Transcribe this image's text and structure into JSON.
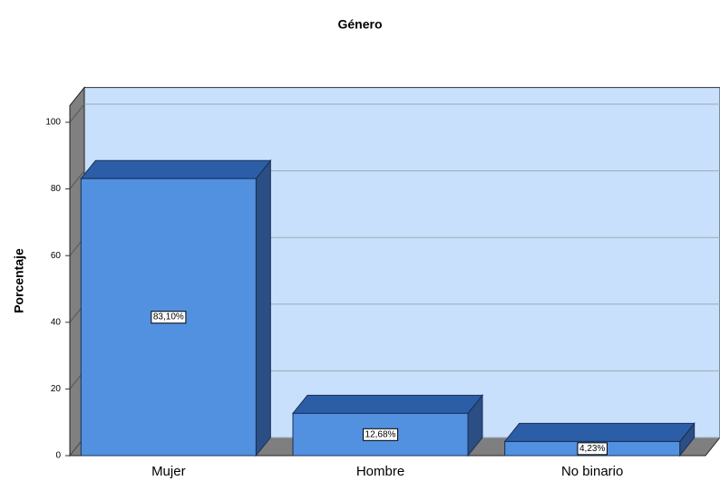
{
  "chart_data": {
    "type": "bar3d",
    "title": "Género",
    "ylabel": "Porcentaje",
    "categories": [
      "Mujer",
      "Hombre",
      "No binario"
    ],
    "values": [
      83.1,
      12.68,
      4.23
    ],
    "value_labels": [
      "83,10%",
      "12,68%",
      "4,23%"
    ],
    "color": "#5291e0",
    "ylim": [
      0,
      105
    ],
    "yticks": [
      0,
      20,
      40,
      60,
      80,
      100
    ],
    "grid": true
  }
}
